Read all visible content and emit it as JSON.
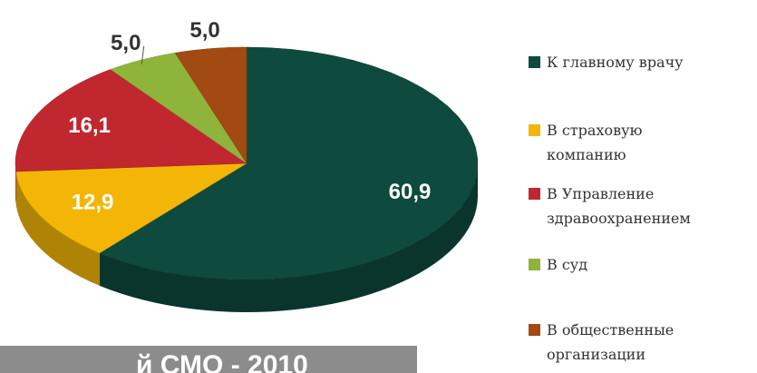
{
  "chart_data": {
    "type": "pie3d",
    "categories": [
      "К главному врачу",
      "В страховую компанию",
      "В Управление здравоохранением",
      "В суд",
      "В общественные организации"
    ],
    "values": [
      60.9,
      12.9,
      16.1,
      5.0,
      5.0
    ],
    "value_labels": [
      "60,9",
      "12,9",
      "16,1",
      "5,0",
      "5,0"
    ],
    "colors": [
      "#0e4a3e",
      "#f3b607",
      "#c0272f",
      "#8fb43b",
      "#a24a12"
    ],
    "legend": "right",
    "annotation": "й СМО - 2010"
  }
}
